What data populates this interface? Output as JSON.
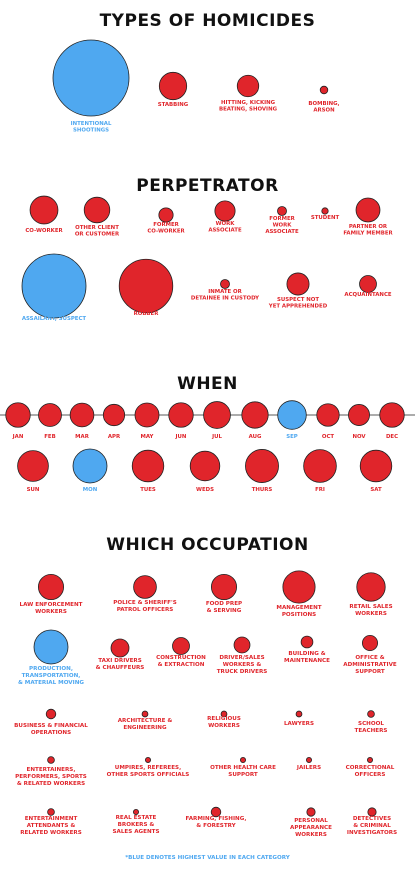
{
  "colors": {
    "normal": "#e0252b",
    "highest": "#4fa8f0",
    "stroke": "#222222",
    "title": "#111111"
  },
  "footnote": "*BLUE DENOTES HIGHEST VALUE IN EACH CATEGORY",
  "chart_data": [
    {
      "type": "bubble",
      "title": "TYPES OF HOMICIDES",
      "points": [
        {
          "label": [
            "INTENTIONAL",
            "SHOOTINGS"
          ],
          "value": 100,
          "highest": true
        },
        {
          "label": [
            "STABBING"
          ],
          "value": 13
        },
        {
          "label": [
            "HITTING, KICKING",
            "BEATING, SHOVING"
          ],
          "value": 8
        },
        {
          "label": [
            "BOMBING,",
            "ARSON"
          ],
          "value": 1
        }
      ]
    },
    {
      "type": "bubble",
      "title": "PERPETRATOR",
      "points": [
        {
          "label": [
            "CO-WORKER"
          ],
          "value": 19
        },
        {
          "label": [
            "OTHER CLIENT",
            "OR CUSTOMER"
          ],
          "value": 16
        },
        {
          "label": [
            "FORMER",
            "CO-WORKER"
          ],
          "value": 5
        },
        {
          "label": [
            "WORK",
            "ASSOCIATE"
          ],
          "value": 10
        },
        {
          "label": [
            "FORMER",
            "WORK",
            "ASSOCIATE"
          ],
          "value": 2
        },
        {
          "label": [
            "STUDENT"
          ],
          "value": 1
        },
        {
          "label": [
            "PARTNER OR",
            "FAMILY MEMBER"
          ],
          "value": 14
        },
        {
          "label": [
            "ASSAILANT, SUSPECT"
          ],
          "value": 100,
          "highest": true
        },
        {
          "label": [
            "ROBBER"
          ],
          "value": 70
        },
        {
          "label": [
            "INMATE OR",
            "DETAINEE IN CUSTODY"
          ],
          "value": 2
        },
        {
          "label": [
            "SUSPECT NOT",
            "YET APPREHENDED"
          ],
          "value": 12
        },
        {
          "label": [
            "ACQUAINTANCE"
          ],
          "value": 7
        }
      ]
    },
    {
      "type": "bubble",
      "title": "WHEN",
      "months": [
        {
          "label": "JAN",
          "value": 50
        },
        {
          "label": "FEB",
          "value": 44
        },
        {
          "label": "MAR",
          "value": 47
        },
        {
          "label": "APR",
          "value": 38
        },
        {
          "label": "MAY",
          "value": 48
        },
        {
          "label": "JUN",
          "value": 50
        },
        {
          "label": "JUL",
          "value": 60
        },
        {
          "label": "AUG",
          "value": 58
        },
        {
          "label": "SEP",
          "value": 68,
          "highest": true
        },
        {
          "label": "OCT",
          "value": 42
        },
        {
          "label": "NOV",
          "value": 37
        },
        {
          "label": "DEC",
          "value": 50
        }
      ],
      "days": [
        {
          "label": "SUN",
          "value": 78
        },
        {
          "label": "MON",
          "value": 95,
          "highest": true
        },
        {
          "label": "TUES",
          "value": 82
        },
        {
          "label": "WEDS",
          "value": 72
        },
        {
          "label": "THURS",
          "value": 90
        },
        {
          "label": "FRI",
          "value": 88
        },
        {
          "label": "SAT",
          "value": 82
        }
      ]
    },
    {
      "type": "bubble",
      "title": "WHICH OCCUPATION",
      "points": [
        {
          "label": [
            "LAW ENFORCEMENT",
            "WORKERS"
          ],
          "value": 55
        },
        {
          "label": [
            "POLICE & SHERIFF'S",
            "PATROL OFFICERS"
          ],
          "value": 45
        },
        {
          "label": [
            "FOOD PREP",
            "& SERVING"
          ],
          "value": 55
        },
        {
          "label": [
            "MANAGEMENT",
            "POSITIONS"
          ],
          "value": 90
        },
        {
          "label": [
            "RETAIL SALES",
            "WORKERS"
          ],
          "value": 70
        },
        {
          "label": [
            "PRODUCTION,",
            "TRANSPORTATION,",
            "& MATERIAL MOVING"
          ],
          "value": 100,
          "highest": true
        },
        {
          "label": [
            "TAXI DRIVERS",
            "& CHAUFFEURS"
          ],
          "value": 28
        },
        {
          "label": [
            "CONSTRUCTION",
            "& EXTRACTION"
          ],
          "value": 25
        },
        {
          "label": [
            "DRIVER/SALES",
            "WORKERS &",
            "TRUCK DRIVERS"
          ],
          "value": 22
        },
        {
          "label": [
            "BUILDING &",
            "MAINTENANCE"
          ],
          "value": 12
        },
        {
          "label": [
            "OFFICE &",
            "ADMINISTRATIVE",
            "SUPPORT"
          ],
          "value": 20
        },
        {
          "label": [
            "BUSINESS & FINANCIAL",
            "OPERATIONS"
          ],
          "value": 8
        },
        {
          "label": [
            "ARCHITECTURE &",
            "ENGINEERING"
          ],
          "value": 3
        },
        {
          "label": [
            "RELIGIOUS",
            "WORKERS"
          ],
          "value": 3
        },
        {
          "label": [
            "LAWYERS"
          ],
          "value": 3
        },
        {
          "label": [
            "SCHOOL",
            "TEACHERS"
          ],
          "value": 4
        },
        {
          "label": [
            "ENTERTAINERS,",
            "PERFORMERS, SPORTS",
            "& RELATED WORKERS"
          ],
          "value": 4
        },
        {
          "label": [
            "UMPIRES, REFEREES,",
            "OTHER SPORTS OFFICIALS"
          ],
          "value": 2
        },
        {
          "label": [
            "OTHER HEALTH CARE",
            "SUPPORT"
          ],
          "value": 2
        },
        {
          "label": [
            "JAILERS"
          ],
          "value": 2
        },
        {
          "label": [
            "CORRECTIONAL",
            "OFFICERS"
          ],
          "value": 2
        },
        {
          "label": [
            "ENTERTAINMENT",
            "ATTENDANTS &",
            "RELATED WORKERS"
          ],
          "value": 4
        },
        {
          "label": [
            "REAL ESTATE",
            "BROKERS &",
            "SALES AGENTS"
          ],
          "value": 2
        },
        {
          "label": [
            "FARMING, FISHING,",
            "& FORESTRY"
          ],
          "value": 8
        },
        {
          "label": [
            "PERSONAL",
            "APPEARANCE",
            "WORKERS"
          ],
          "value": 6
        },
        {
          "label": [
            "DETECTIVES",
            "& CRIMINAL",
            "INVESTIGATORS"
          ],
          "value": 6
        }
      ]
    }
  ]
}
